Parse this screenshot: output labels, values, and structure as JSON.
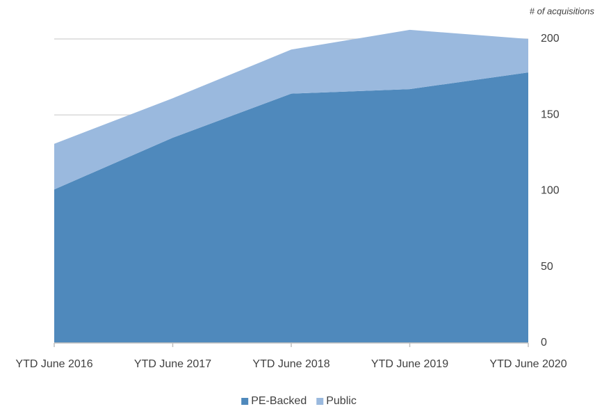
{
  "chart_data": {
    "type": "area",
    "stacked": true,
    "y_axis_label": "# of acquisitions",
    "categories": [
      "YTD June 2016",
      "YTD June 2017",
      "YTD June 2018",
      "YTD June 2019",
      "YTD June 2020"
    ],
    "series": [
      {
        "name": "PE-Backed",
        "color": "#4f89bc",
        "values": [
          101,
          135,
          164,
          167,
          178
        ]
      },
      {
        "name": "Public",
        "color": "#9ab9de",
        "values": [
          30,
          26,
          29,
          39,
          22
        ]
      }
    ],
    "ylim": [
      0,
      200
    ],
    "yticks": [
      0,
      50,
      100,
      150,
      200
    ],
    "grid": true,
    "y_axis_side": "right",
    "legend": "bottom"
  }
}
